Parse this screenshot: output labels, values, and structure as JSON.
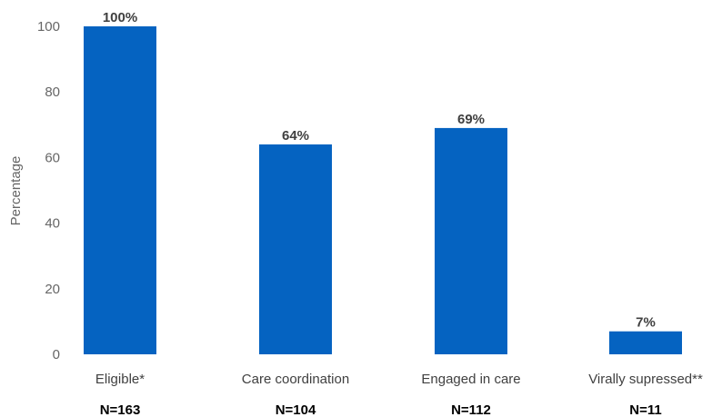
{
  "chart_data": {
    "type": "bar",
    "title": "",
    "xlabel": "",
    "ylabel": "Percentage",
    "ylim": [
      0,
      100
    ],
    "yticks": [
      0,
      20,
      40,
      60,
      80,
      100
    ],
    "grid": false,
    "legend": "none",
    "bar_color": "#0563C1",
    "categories": [
      "Eligible*",
      "Care coordination",
      "Engaged in care",
      "Virally supressed**"
    ],
    "values": [
      100,
      64,
      69,
      7
    ],
    "data_labels": [
      "100%",
      "64%",
      "69%",
      "7%"
    ],
    "n_labels": [
      "N=163",
      "N=104",
      "N=112",
      "N=11"
    ]
  }
}
